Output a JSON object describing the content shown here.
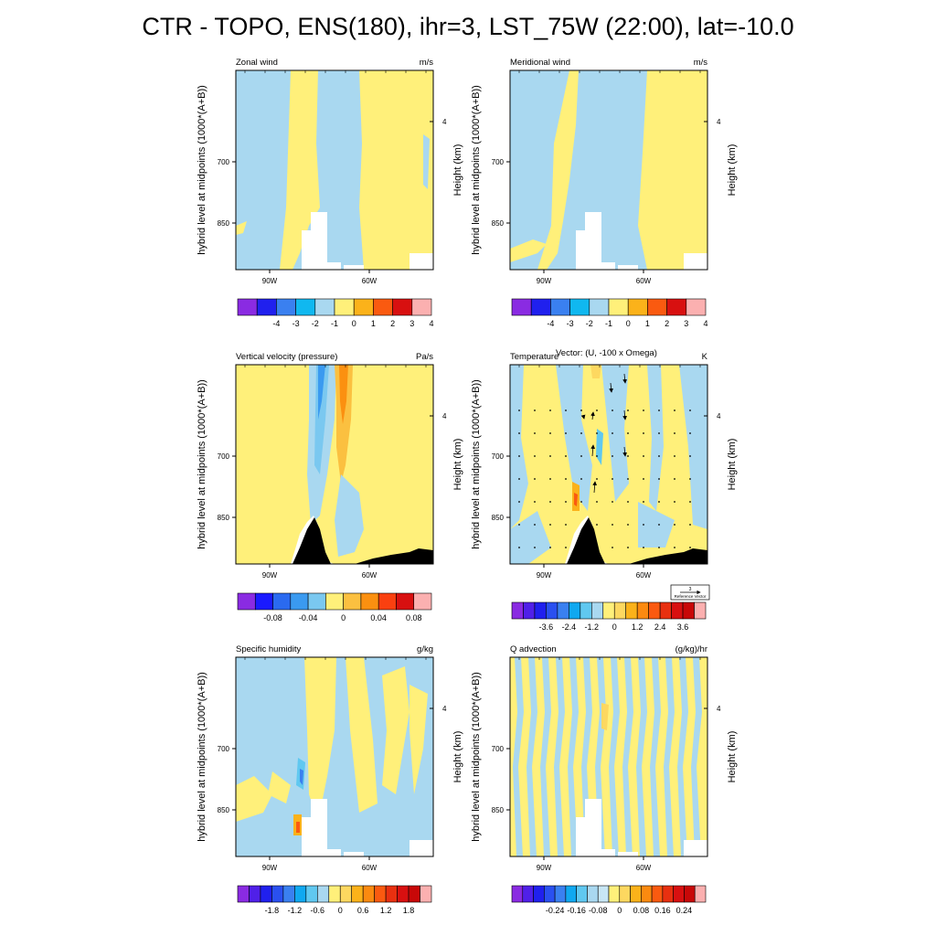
{
  "title": "CTR - TOPO, ENS(180), ihr=3, LST_75W (22:00), lat=-10.0",
  "shared_axes": {
    "ylabel": "hybrid level at midpoints (1000*(A+B))",
    "ylabel_right": "Height (km)",
    "x_ticks": [
      "90W",
      "60W"
    ],
    "y_ticks": [
      "700",
      "850"
    ],
    "y_ticks_right": [
      "4"
    ]
  },
  "colors": {
    "topo_fill": "#000000",
    "missing": "#ffffff",
    "positive_small": "#fff07a",
    "negative_small": "#a9d8f0"
  },
  "chart_data": [
    {
      "type": "heatmap",
      "title": "Zonal wind",
      "units": "m/s",
      "topography": "white",
      "colorbar": {
        "labels": [
          "-4",
          "-3",
          "-2",
          "-1",
          "0",
          "1",
          "2",
          "3",
          "4"
        ],
        "colors": [
          "#8a2be2",
          "#2020ee",
          "#3a80f0",
          "#10b8f0",
          "#a9d8f0",
          "#fff07a",
          "#fbb21a",
          "#fa5a10",
          "#d81010",
          "#fbb0b0"
        ]
      },
      "shading": "bands"
    },
    {
      "type": "heatmap",
      "title": "Meridional wind",
      "units": "m/s",
      "topography": "white",
      "colorbar": {
        "labels": [
          "-4",
          "-3",
          "-2",
          "-1",
          "0",
          "1",
          "2",
          "3",
          "4"
        ],
        "colors": [
          "#8a2be2",
          "#2020ee",
          "#3a80f0",
          "#10b8f0",
          "#a9d8f0",
          "#fff07a",
          "#fbb21a",
          "#fa5a10",
          "#d81010",
          "#fbb0b0"
        ]
      },
      "shading": "bands2"
    },
    {
      "type": "heatmap",
      "title": "Vertical velocity (pressure)",
      "units": "Pa/s",
      "topography": "black",
      "colorbar": {
        "labels": [
          "-0.08",
          "-0.04",
          "0",
          "0.04",
          "0.08"
        ],
        "colors": [
          "#8a2be2",
          "#1a1aff",
          "#2a6af0",
          "#3a9af0",
          "#7ac8f0",
          "#fff07a",
          "#fbc040",
          "#fb9010",
          "#fa4010",
          "#d81010",
          "#fbb0b0"
        ]
      },
      "shading": "omega"
    },
    {
      "type": "heatmap",
      "title": "Temperature",
      "overlay_title": "Vector: (U, -100 x Omega)",
      "units": "K",
      "topography": "black",
      "reference_vector": {
        "value": "3",
        "label": "Reference Vector"
      },
      "colorbar": {
        "labels": [
          "-3.6",
          "-2.4",
          "-1.2",
          "0",
          "1.2",
          "2.4",
          "3.6"
        ],
        "colors": [
          "#8a2be2",
          "#5020e8",
          "#2020ee",
          "#2a50f0",
          "#3a80f0",
          "#10a8f0",
          "#60c8f0",
          "#a9d8f0",
          "#fff07a",
          "#fdd860",
          "#fbb21a",
          "#fb8a10",
          "#fa5a10",
          "#e83010",
          "#d81010",
          "#c80808",
          "#fbb0b0"
        ]
      },
      "shading": "temp"
    },
    {
      "type": "heatmap",
      "title": "Specific humidity",
      "units": "g/kg",
      "topography": "white",
      "colorbar": {
        "labels": [
          "-1.8",
          "-1.2",
          "-0.6",
          "0",
          "0.6",
          "1.2",
          "1.8"
        ],
        "colors": [
          "#8a2be2",
          "#5020e8",
          "#2020ee",
          "#2a50f0",
          "#3a80f0",
          "#10a8f0",
          "#60c8f0",
          "#a9d8f0",
          "#fff07a",
          "#fdd860",
          "#fbb21a",
          "#fb8a10",
          "#fa5a10",
          "#e83010",
          "#d81010",
          "#c80808",
          "#fbb0b0"
        ]
      },
      "shading": "q"
    },
    {
      "type": "heatmap",
      "title": "Q advection",
      "units": "(g/kg)/hr",
      "topography": "white",
      "colorbar": {
        "labels": [
          "-0.24",
          "-0.16",
          "-0.08",
          "0",
          "0.08",
          "0.16",
          "0.24"
        ],
        "colors": [
          "#8a2be2",
          "#5020e8",
          "#2020ee",
          "#2a50f0",
          "#3a80f0",
          "#10a8f0",
          "#60c8f0",
          "#a9d8f0",
          "#c8e6f4",
          "#fff07a",
          "#fdd860",
          "#fbb21a",
          "#fb8a10",
          "#fa5a10",
          "#e83010",
          "#d81010",
          "#c80808",
          "#fbb0b0"
        ]
      },
      "shading": "qadv"
    }
  ]
}
